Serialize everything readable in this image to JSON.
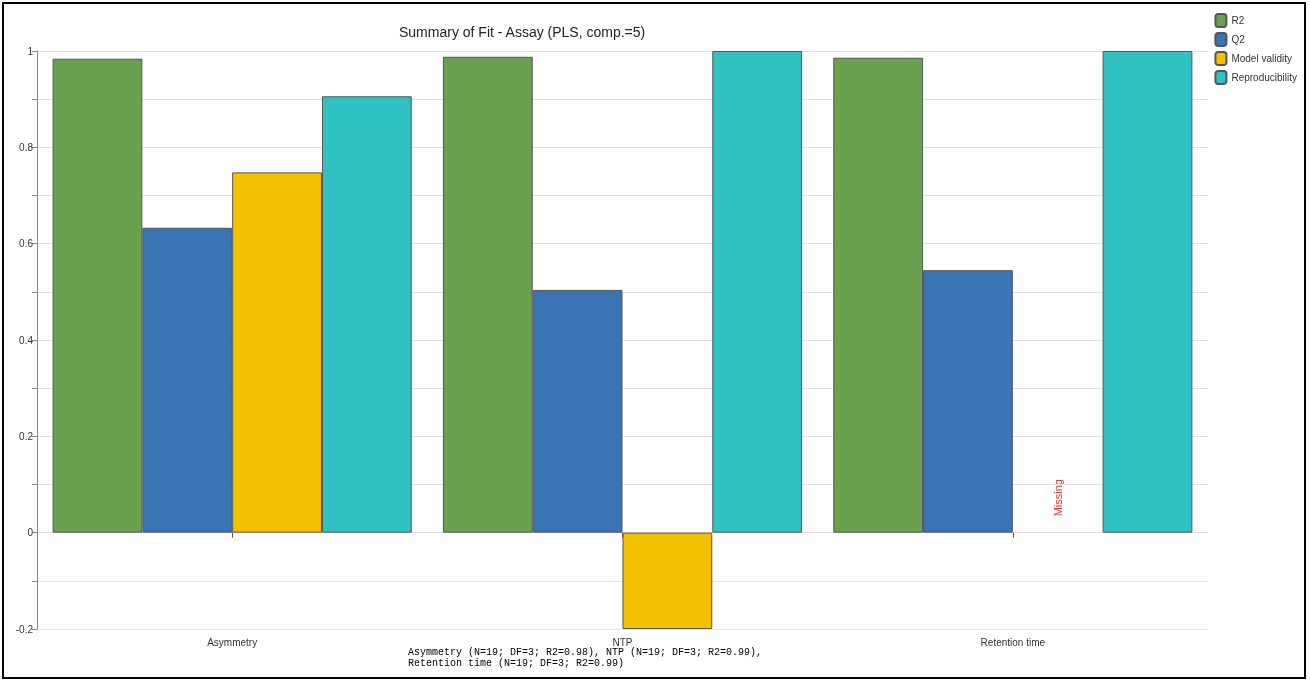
{
  "chart_data": {
    "type": "bar",
    "title": "Summary of Fit - Assay (PLS, comp.=5)",
    "categories": [
      "Asymmetry",
      "NTP",
      "Retention time"
    ],
    "series": [
      {
        "name": "R2",
        "color": "#6aa050",
        "values": [
          0.984,
          0.988,
          0.986
        ]
      },
      {
        "name": "Q2",
        "color": "#3a74b4",
        "values": [
          0.633,
          0.504,
          0.545
        ]
      },
      {
        "name": "Model validity",
        "color": "#f2c200",
        "values": [
          0.748,
          -0.2,
          null
        ]
      },
      {
        "name": "Reproducibility",
        "color": "#30c2c2",
        "values": [
          0.906,
          1.0,
          1.0
        ]
      }
    ],
    "ylim": [
      -0.2,
      1
    ],
    "yticks": [
      {
        "value": -0.2,
        "label": "-0.2"
      },
      {
        "value": -0.1,
        "label": null
      },
      0,
      {
        "value": 0.1,
        "label": null
      },
      {
        "value": 0.2,
        "label": "0.2"
      },
      {
        "value": 0.3,
        "label": null
      },
      {
        "value": 0.4,
        "label": "0.4"
      },
      {
        "value": 0.5,
        "label": null
      },
      {
        "value": 0.6,
        "label": "0.6"
      },
      {
        "value": 0.7,
        "label": null
      },
      {
        "value": 0.8,
        "label": "0.8"
      },
      {
        "value": 0.9,
        "label": null
      },
      1
    ],
    "grid": "y",
    "legend": "top right",
    "annotations": [
      "Missing",
      "Asymmetry (N=19; DF=3; R2=0.98), NTP (N=19; DF=3; R2=0.99),\nRetention time (N=19; DF=3; R2=0.99)"
    ]
  }
}
